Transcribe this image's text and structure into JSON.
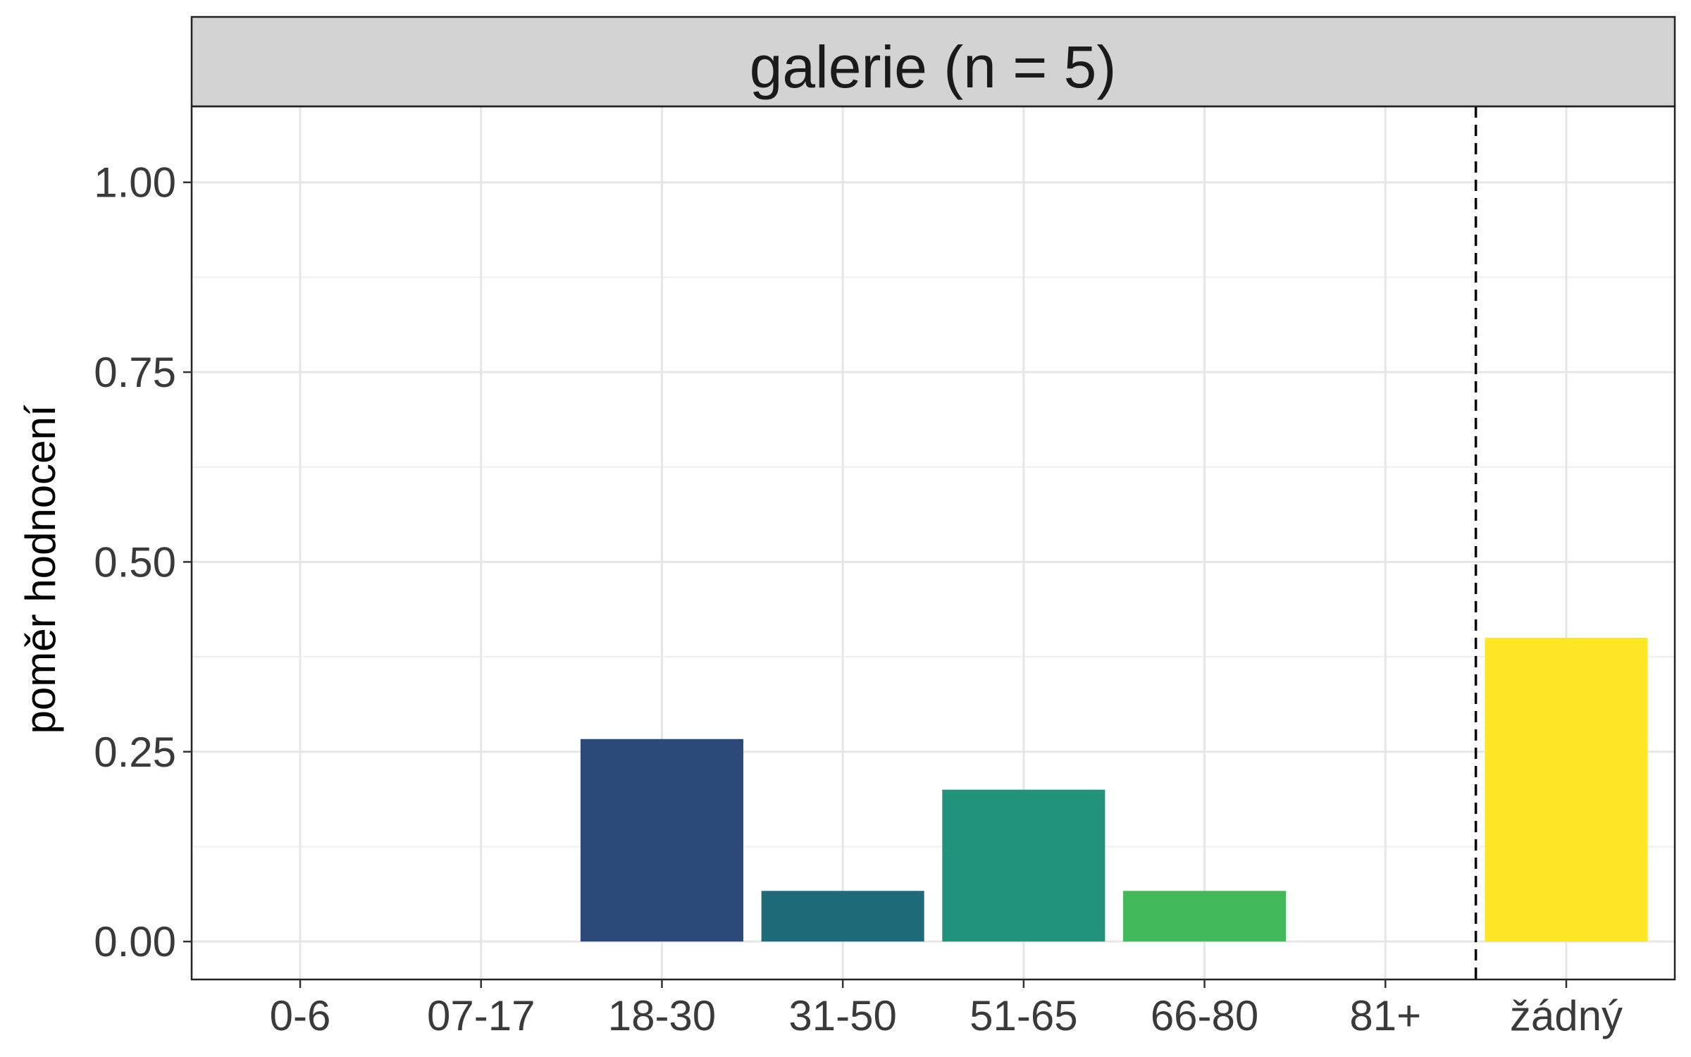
{
  "chart_data": {
    "type": "bar",
    "facet_title": "galerie (n = 5)",
    "categories": [
      "0-6",
      "07-17",
      "18-30",
      "31-50",
      "51-65",
      "66-80",
      "81+",
      "žádný"
    ],
    "values": [
      0,
      0,
      0.2667,
      0.0667,
      0.2,
      0.0667,
      0,
      0.4
    ],
    "colors": [
      "#440154",
      "#46337e",
      "#2b4a7a",
      "#1f6b7a",
      "#21937a",
      "#42b95a",
      "#addc30",
      "#fde725"
    ],
    "ylabel": "poměr hodnocení",
    "xlabel": "",
    "ylim": [
      -0.05,
      1.1
    ],
    "yticks": [
      0,
      0.25,
      0.5,
      0.75,
      1
    ],
    "ytick_labels": [
      "0.00",
      "0.25",
      "0.50",
      "0.75",
      "1.00"
    ],
    "grid": true,
    "dashed_separator_between": [
      "81+",
      "žádný"
    ]
  }
}
